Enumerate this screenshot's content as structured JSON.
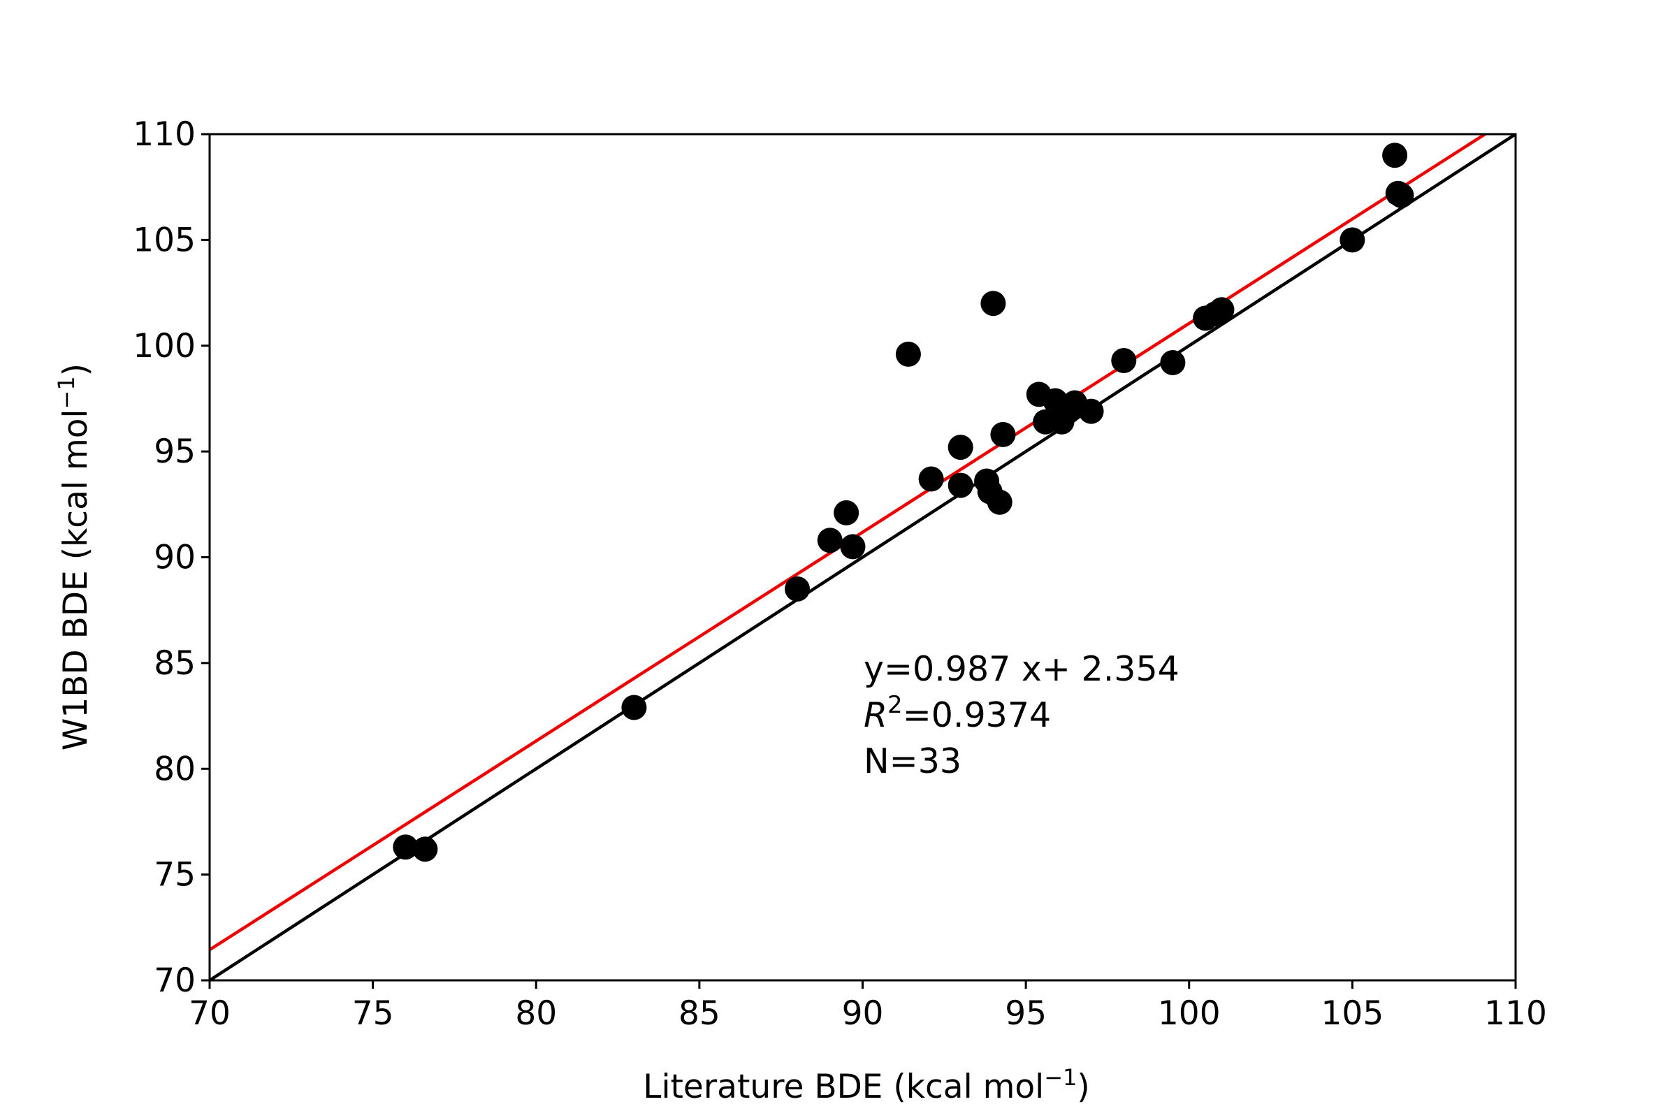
{
  "chart_data": {
    "type": "scatter",
    "xlabel": "Literature BDE (kcal mol",
    "ylabel": "W1BD BDE (kcal mol",
    "label_unit_exponent": "−1",
    "label_unit_close": ")",
    "xlim": [
      70,
      110
    ],
    "ylim": [
      70,
      110
    ],
    "xticks": [
      70,
      75,
      80,
      85,
      90,
      95,
      100,
      105,
      110
    ],
    "yticks": [
      70,
      75,
      80,
      85,
      90,
      95,
      100,
      105,
      110
    ],
    "grid": false,
    "marker_color": "#000000",
    "points": [
      {
        "x": 76.0,
        "y": 76.3
      },
      {
        "x": 76.6,
        "y": 76.2
      },
      {
        "x": 83.0,
        "y": 82.9
      },
      {
        "x": 88.0,
        "y": 88.5
      },
      {
        "x": 89.0,
        "y": 90.8
      },
      {
        "x": 89.5,
        "y": 92.1
      },
      {
        "x": 89.7,
        "y": 90.5
      },
      {
        "x": 91.4,
        "y": 99.6
      },
      {
        "x": 92.1,
        "y": 93.7
      },
      {
        "x": 93.0,
        "y": 95.2
      },
      {
        "x": 93.0,
        "y": 93.4
      },
      {
        "x": 93.8,
        "y": 93.6
      },
      {
        "x": 93.9,
        "y": 93.1
      },
      {
        "x": 94.0,
        "y": 102.0
      },
      {
        "x": 94.2,
        "y": 92.6
      },
      {
        "x": 94.3,
        "y": 95.8
      },
      {
        "x": 95.4,
        "y": 97.7
      },
      {
        "x": 95.6,
        "y": 96.4
      },
      {
        "x": 95.9,
        "y": 97.4
      },
      {
        "x": 96.0,
        "y": 96.5
      },
      {
        "x": 96.1,
        "y": 96.4
      },
      {
        "x": 96.3,
        "y": 96.9
      },
      {
        "x": 96.5,
        "y": 97.3
      },
      {
        "x": 97.0,
        "y": 96.9
      },
      {
        "x": 98.0,
        "y": 99.3
      },
      {
        "x": 99.5,
        "y": 99.2
      },
      {
        "x": 100.5,
        "y": 101.3
      },
      {
        "x": 100.8,
        "y": 101.5
      },
      {
        "x": 101.0,
        "y": 101.7
      },
      {
        "x": 105.0,
        "y": 105.0
      },
      {
        "x": 106.3,
        "y": 109.0
      },
      {
        "x": 106.4,
        "y": 107.2
      },
      {
        "x": 106.5,
        "y": 107.1
      }
    ],
    "lines": [
      {
        "slope": 1.0,
        "intercept": 0.0,
        "color": "#000000"
      },
      {
        "slope": 0.987,
        "intercept": 2.354,
        "color": "#ee0000"
      }
    ],
    "annotation": {
      "equation": "y=0.987 x+ 2.354",
      "r2_symbol": "R",
      "r2_exponent": "2",
      "r2_value": "=0.9374",
      "n_text": "N=33"
    }
  }
}
